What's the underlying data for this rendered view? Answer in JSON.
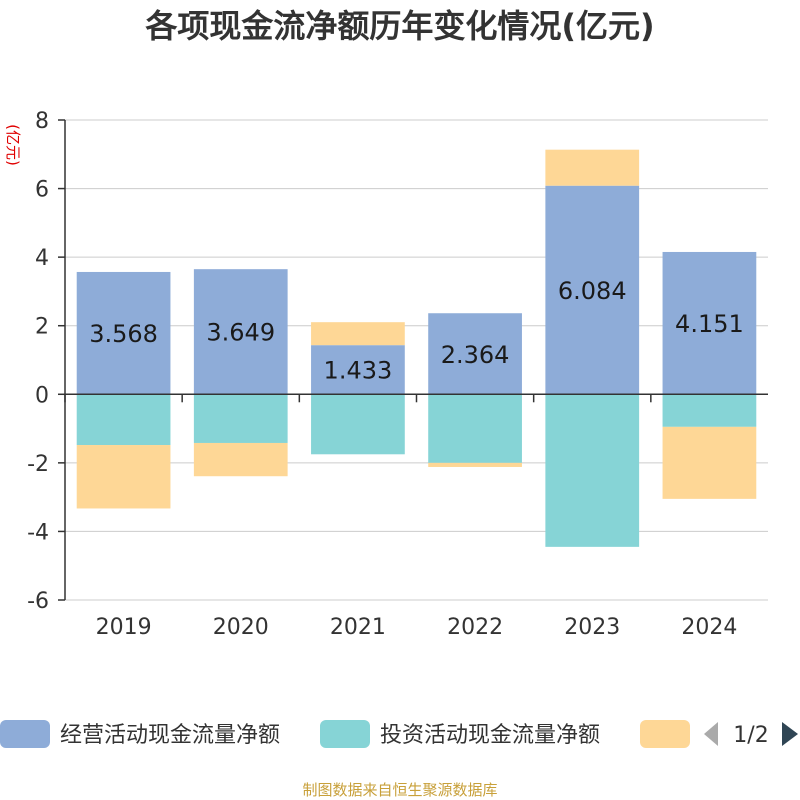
{
  "chart_data": {
    "type": "bar",
    "stacked": true,
    "title": "各项现金流净额历年变化情况(亿元)",
    "ylabel": "(亿元)",
    "xlabel": "",
    "ylim": [
      -6,
      8
    ],
    "yticks": [
      8,
      6,
      4,
      2,
      0,
      -2,
      -4,
      -6
    ],
    "categories": [
      "2019",
      "2020",
      "2021",
      "2022",
      "2023",
      "2024"
    ],
    "series": [
      {
        "name": "经营活动现金流量净额",
        "color": "#8eacd8",
        "values": [
          3.568,
          3.649,
          1.433,
          2.364,
          6.084,
          4.151
        ],
        "labels": [
          "3.568",
          "3.649",
          "1.433",
          "2.364",
          "6.084",
          "4.151"
        ]
      },
      {
        "name": "投资活动现金流量净额",
        "color": "#86d4d6",
        "values": [
          -1.48,
          -1.42,
          -1.75,
          -2.0,
          -4.45,
          -0.95
        ]
      },
      {
        "name": "",
        "color": "#fed796",
        "values": [
          -1.85,
          -0.97,
          0.67,
          -0.12,
          1.05,
          -2.1
        ]
      }
    ],
    "legend": {
      "position": "bottom",
      "page": "1/2"
    }
  },
  "source": "制图数据来自恒生聚源数据库"
}
